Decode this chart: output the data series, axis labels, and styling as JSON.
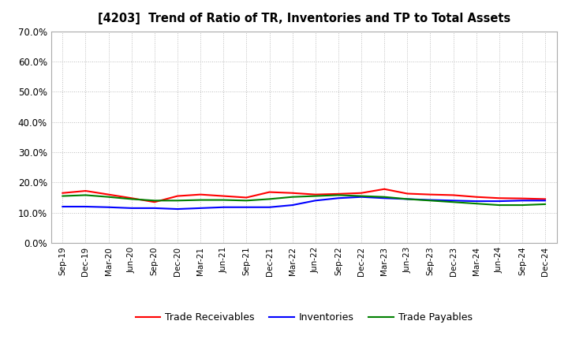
{
  "title": "[4203]  Trend of Ratio of TR, Inventories and TP to Total Assets",
  "x_labels": [
    "Sep-19",
    "Dec-19",
    "Mar-20",
    "Jun-20",
    "Sep-20",
    "Dec-20",
    "Mar-21",
    "Jun-21",
    "Sep-21",
    "Dec-21",
    "Mar-22",
    "Jun-22",
    "Sep-22",
    "Dec-22",
    "Mar-23",
    "Jun-23",
    "Sep-23",
    "Dec-23",
    "Mar-24",
    "Jun-24",
    "Sep-24",
    "Dec-24"
  ],
  "trade_receivables": [
    0.165,
    0.172,
    0.16,
    0.148,
    0.135,
    0.155,
    0.16,
    0.155,
    0.15,
    0.168,
    0.165,
    0.16,
    0.162,
    0.165,
    0.178,
    0.163,
    0.16,
    0.158,
    0.152,
    0.148,
    0.147,
    0.145
  ],
  "inventories": [
    0.12,
    0.12,
    0.118,
    0.115,
    0.115,
    0.112,
    0.115,
    0.118,
    0.118,
    0.118,
    0.125,
    0.14,
    0.148,
    0.152,
    0.148,
    0.145,
    0.142,
    0.14,
    0.138,
    0.138,
    0.14,
    0.14
  ],
  "trade_payables": [
    0.155,
    0.158,
    0.152,
    0.145,
    0.14,
    0.14,
    0.142,
    0.142,
    0.14,
    0.145,
    0.152,
    0.155,
    0.158,
    0.155,
    0.152,
    0.145,
    0.14,
    0.135,
    0.13,
    0.125,
    0.125,
    0.128
  ],
  "tr_color": "#FF0000",
  "inv_color": "#0000FF",
  "tp_color": "#008000",
  "ylim": [
    0.0,
    0.7
  ],
  "yticks": [
    0.0,
    0.1,
    0.2,
    0.3,
    0.4,
    0.5,
    0.6,
    0.7
  ],
  "bg_color": "#FFFFFF",
  "plot_bg_color": "#FFFFFF",
  "grid_color": "#BBBBBB",
  "legend_labels": [
    "Trade Receivables",
    "Inventories",
    "Trade Payables"
  ]
}
